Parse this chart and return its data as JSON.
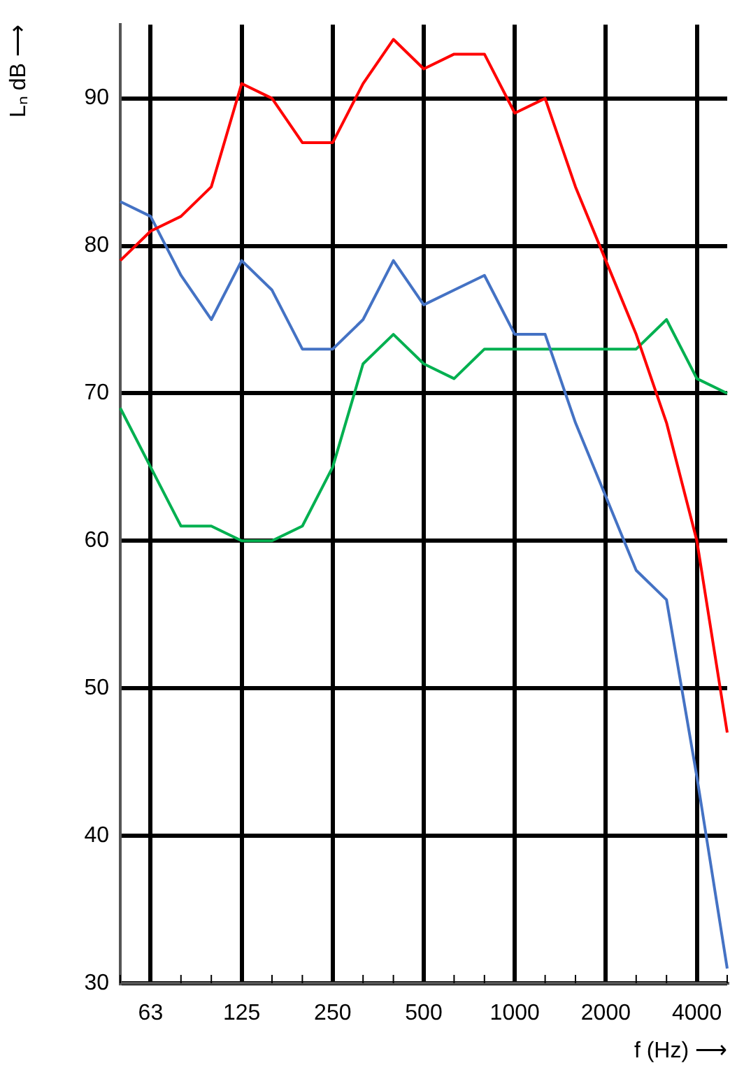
{
  "chart_data": {
    "type": "line",
    "xlabel": "f (Hz) ⟶",
    "ylabel": "Lₙ dB ⟶",
    "categories": [
      null,
      "63",
      null,
      null,
      "125",
      null,
      null,
      "250",
      null,
      null,
      "500",
      null,
      null,
      "1000",
      null,
      null,
      "2000",
      null,
      null,
      "4000",
      null
    ],
    "series": [
      {
        "color": "#ff0000",
        "values": [
          79,
          81,
          82,
          84,
          91,
          90,
          87,
          87,
          91,
          94,
          92,
          93,
          93,
          89,
          90,
          84,
          79,
          74,
          68,
          60,
          47
        ]
      },
      {
        "color": "#4472c4",
        "values": [
          83,
          82,
          78,
          75,
          79,
          77,
          73,
          73,
          75,
          79,
          76,
          77,
          78,
          74,
          74,
          68,
          63,
          58,
          56,
          44,
          31
        ]
      },
      {
        "color": "#00b050",
        "values": [
          69,
          65,
          61,
          61,
          60,
          60,
          61,
          65,
          72,
          74,
          72,
          71,
          73,
          73,
          73,
          73,
          73,
          73,
          75,
          71,
          70
        ]
      }
    ],
    "ylim": [
      30,
      95
    ],
    "yticks": [
      30,
      40,
      50,
      60,
      70,
      80,
      90
    ],
    "grid": true,
    "legend": false,
    "marker": "none",
    "line_style": "solid"
  }
}
